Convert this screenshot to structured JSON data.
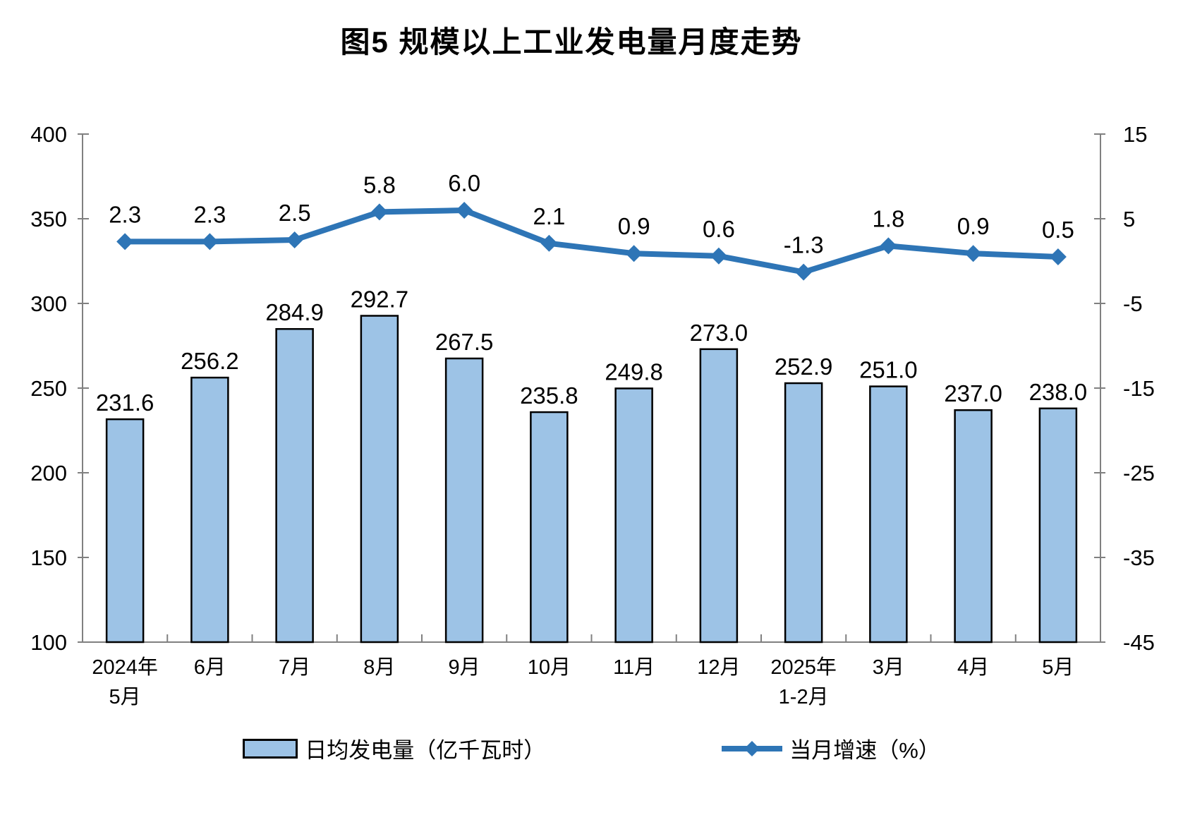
{
  "chart_data": {
    "type": "bar",
    "combo": "bar+line",
    "title": "图5 规模以上工业发电量月度走势",
    "categories": [
      [
        "2024年",
        "5月"
      ],
      [
        "6月"
      ],
      [
        "7月"
      ],
      [
        "8月"
      ],
      [
        "9月"
      ],
      [
        "10月"
      ],
      [
        "11月"
      ],
      [
        "12月"
      ],
      [
        "2025年",
        "1-2月"
      ],
      [
        "3月"
      ],
      [
        "4月"
      ],
      [
        "5月"
      ]
    ],
    "series": [
      {
        "name": "日均发电量（亿千瓦时）",
        "kind": "bar",
        "axis": "left",
        "label_decimals": 1,
        "values": [
          231.6,
          256.2,
          284.9,
          292.7,
          267.5,
          235.8,
          249.8,
          273.0,
          252.9,
          251.0,
          237.0,
          238.0
        ]
      },
      {
        "name": "当月增速（%）",
        "kind": "line",
        "axis": "right",
        "label_decimals": 1,
        "values": [
          2.3,
          2.3,
          2.5,
          5.8,
          6.0,
          2.1,
          0.9,
          0.6,
          -1.3,
          1.8,
          0.9,
          0.5
        ]
      }
    ],
    "left_axis": {
      "min": 100,
      "max": 400,
      "step": 50,
      "ticks": [
        "400",
        "350",
        "300",
        "250",
        "200",
        "150",
        "100"
      ]
    },
    "right_axis": {
      "min": -45,
      "max": 15,
      "step": 10,
      "ticks": [
        "15",
        "5",
        "-5",
        "-15",
        "-25",
        "-35",
        "-45"
      ]
    },
    "legend": [
      {
        "label": "日均发电量（亿千瓦时）",
        "marker": "bar-swatch"
      },
      {
        "label": "当月增速（%）",
        "marker": "line-diamond"
      }
    ],
    "colors": {
      "bar_fill": "#9DC3E6",
      "bar_border": "#000000",
      "line": "#2E75B6",
      "axis": "#808080",
      "text": "#000000"
    },
    "grid": "off",
    "legend_position": "bottom"
  }
}
